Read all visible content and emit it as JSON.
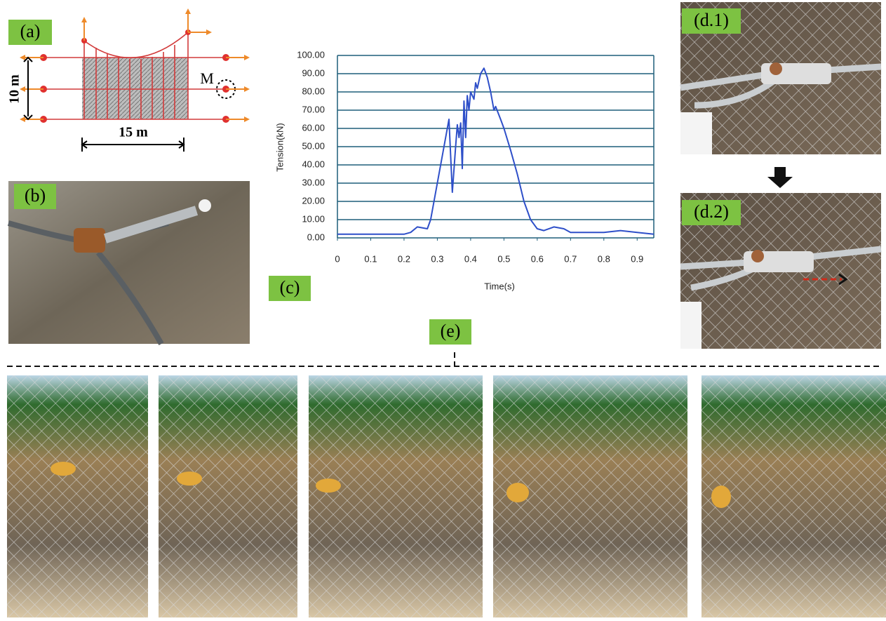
{
  "panels": {
    "a": "(a)",
    "b": "(b)",
    "c": "(c)",
    "d1": "(d.1)",
    "d2": "(d.2)",
    "e": "(e)"
  },
  "diagram": {
    "height": "10 m",
    "width": "15 m",
    "point": "M"
  },
  "chart_data": {
    "type": "line",
    "xlabel": "Time(s)",
    "ylabel": "Tension(kN)",
    "x": [
      0,
      0.1,
      0.2,
      0.22,
      0.24,
      0.27,
      0.28,
      0.3,
      0.32,
      0.335,
      0.345,
      0.355,
      0.36,
      0.365,
      0.37,
      0.375,
      0.38,
      0.385,
      0.39,
      0.395,
      0.4,
      0.41,
      0.415,
      0.42,
      0.43,
      0.44,
      0.45,
      0.46,
      0.47,
      0.475,
      0.49,
      0.5,
      0.52,
      0.54,
      0.56,
      0.58,
      0.6,
      0.62,
      0.65,
      0.68,
      0.7,
      0.8,
      0.85,
      0.9,
      0.95
    ],
    "values": [
      2,
      2,
      2,
      3,
      6,
      5,
      10,
      30,
      50,
      65,
      25,
      50,
      62,
      55,
      63,
      38,
      75,
      55,
      78,
      70,
      80,
      76,
      85,
      82,
      90,
      93,
      88,
      80,
      70,
      72,
      65,
      60,
      48,
      35,
      20,
      10,
      5,
      4,
      6,
      5,
      3,
      3,
      4,
      3,
      2
    ],
    "color": "#2e4fc9",
    "xlim": [
      0,
      0.95
    ],
    "ylim": [
      0,
      100
    ],
    "xticks": [
      0,
      0.1,
      0.2,
      0.3,
      0.4,
      0.5,
      0.6,
      0.7,
      0.8,
      0.9
    ],
    "yticks": [
      {
        "value": 0,
        "label": "0.00"
      },
      {
        "value": 10,
        "label": "10.00"
      },
      {
        "value": 20,
        "label": "20.00"
      },
      {
        "value": 30,
        "label": "30.00"
      },
      {
        "value": 40,
        "label": "40.00"
      },
      {
        "value": 50,
        "label": "50.00"
      },
      {
        "value": 60,
        "label": "60.00"
      },
      {
        "value": 70,
        "label": "70.00"
      },
      {
        "value": 80,
        "label": "80.00"
      },
      {
        "value": 90,
        "label": "90.00"
      },
      {
        "value": 100,
        "label": "100.00"
      }
    ],
    "grid": true,
    "grid_color": "#1f5f7a"
  }
}
